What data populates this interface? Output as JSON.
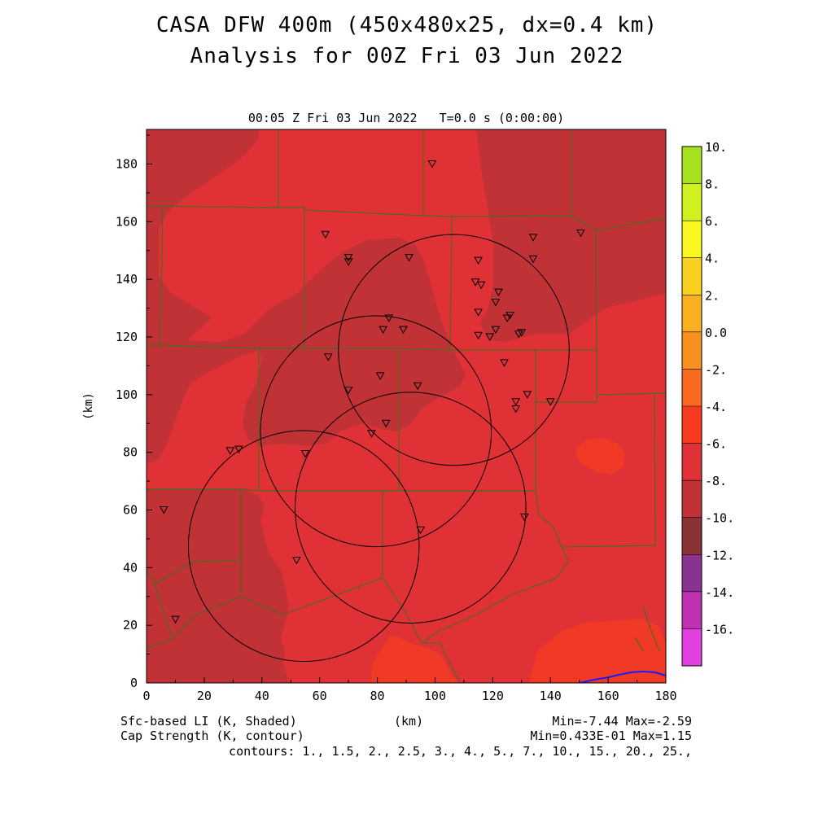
{
  "title": "CASA DFW 400m (450x480x25, dx=0.4 km)",
  "subtitle": "Analysis for 00Z Fri 03 Jun 2022",
  "plot_header": {
    "time_label": "00:05 Z Fri 03 Jun 2022",
    "t_label": "T=0.0 s (0:00:00)"
  },
  "footer": {
    "field1": "Sfc-based LI (K, Shaded)",
    "field2": "Cap Strength (K, contour)",
    "xunit": "(km)",
    "minmax1": "Min=-7.44 Max=-2.59",
    "minmax2": "Min=0.433E-01 Max=1.15",
    "contours": "contours: 1., 1.5, 2., 2.5, 3., 4., 5., 7., 10., 15., 20., 25.,"
  },
  "colors": {
    "base_field": "#e03236",
    "darker_field": "#c03236",
    "bright_field": "#f03a26",
    "county_lines": "#4c6a1c",
    "contour": "#000000",
    "coastline": "#1a1aff"
  },
  "chart_data": {
    "type": "heatmap",
    "xlabel": "(km)",
    "ylabel": "(km)",
    "xlim": [
      0,
      180
    ],
    "ylim": [
      0,
      192
    ],
    "x_ticks": [
      0,
      20,
      40,
      60,
      80,
      100,
      120,
      140,
      160,
      180
    ],
    "y_ticks": [
      0,
      20,
      40,
      60,
      80,
      100,
      120,
      140,
      160,
      180
    ],
    "colorbar": {
      "labels": [
        "10.",
        "8.",
        "6.",
        "4.",
        "2.",
        "0.0",
        "-2.",
        "-4.",
        "-6.",
        "-8.",
        "-10.",
        "-12.",
        "-14.",
        "-16."
      ],
      "colors": [
        "#a6e01e",
        "#d0f020",
        "#f8f820",
        "#f8d020",
        "#f8b020",
        "#f89020",
        "#f86a20",
        "#f83a20",
        "#e03236",
        "#c03236",
        "#8a3236",
        "#8a3290",
        "#c032b0",
        "#e040e0"
      ]
    },
    "radar_circles": [
      {
        "center": [
          106.5,
          115.5
        ],
        "radius": 40
      },
      {
        "center": [
          79.5,
          87.3
        ],
        "radius": 40
      },
      {
        "center": [
          91.5,
          60.8
        ],
        "radius": 40
      },
      {
        "center": [
          54.5,
          47.5
        ],
        "radius": 40
      }
    ],
    "stations": [
      [
        99,
        180
      ],
      [
        62,
        155.5
      ],
      [
        70,
        147.5
      ],
      [
        70,
        146
      ],
      [
        91,
        147.5
      ],
      [
        115,
        146.5
      ],
      [
        114,
        139
      ],
      [
        116,
        138
      ],
      [
        122,
        135.5
      ],
      [
        121,
        132
      ],
      [
        115,
        128.5
      ],
      [
        125,
        126.5
      ],
      [
        126,
        127.5
      ],
      [
        134,
        154.5
      ],
      [
        134,
        147
      ],
      [
        150.5,
        156
      ],
      [
        84,
        126.5
      ],
      [
        82,
        122.5
      ],
      [
        89,
        122.5
      ],
      [
        115,
        120.5
      ],
      [
        119,
        120
      ],
      [
        121,
        122.5
      ],
      [
        129,
        121
      ],
      [
        130,
        121.5
      ],
      [
        124,
        111
      ],
      [
        63,
        113
      ],
      [
        81,
        106.5
      ],
      [
        94,
        103
      ],
      [
        70,
        101.5
      ],
      [
        132,
        100
      ],
      [
        128,
        97.5
      ],
      [
        128,
        95
      ],
      [
        140,
        97.5
      ],
      [
        83,
        90
      ],
      [
        78,
        86.5
      ],
      [
        55,
        79.5
      ],
      [
        29,
        80.5
      ],
      [
        32,
        81
      ],
      [
        6,
        60
      ],
      [
        95,
        53
      ],
      [
        131,
        57.5
      ],
      [
        52,
        42.5
      ],
      [
        10,
        22
      ]
    ]
  }
}
